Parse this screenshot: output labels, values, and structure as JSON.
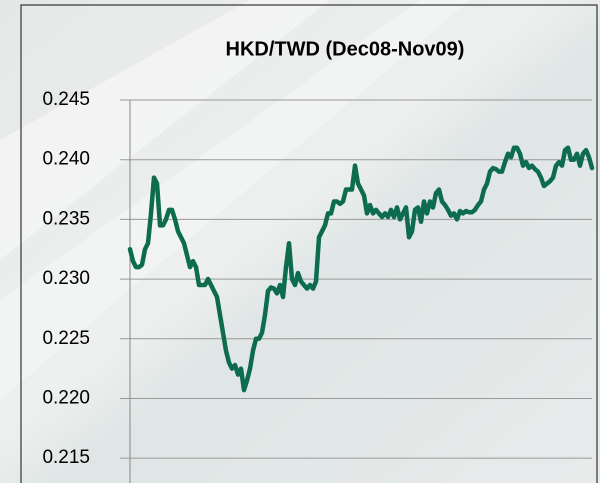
{
  "chart_data": {
    "type": "line",
    "title": "HKD/TWD (Dec08-Nov09)",
    "series": [
      {
        "name": null,
        "color": "#0d6b4e",
        "values": [
          0.2325,
          0.2315,
          0.231,
          0.231,
          0.2312,
          0.2325,
          0.233,
          0.2355,
          0.2385,
          0.238,
          0.2345,
          0.2345,
          0.235,
          0.2358,
          0.2358,
          0.235,
          0.234,
          0.2335,
          0.233,
          0.232,
          0.231,
          0.2315,
          0.231,
          0.2295,
          0.2295,
          0.2295,
          0.23,
          0.2295,
          0.229,
          0.2285,
          0.227,
          0.2255,
          0.224,
          0.223,
          0.2225,
          0.2228,
          0.222,
          0.2225,
          0.2207,
          0.2215,
          0.2225,
          0.224,
          0.225,
          0.225,
          0.2255,
          0.227,
          0.229,
          0.2293,
          0.2292,
          0.2288,
          0.2295,
          0.2285,
          0.231,
          0.233,
          0.23,
          0.2295,
          0.2305,
          0.2298,
          0.2295,
          0.2292,
          0.2295,
          0.2292,
          0.2298,
          0.2335,
          0.234,
          0.2345,
          0.2355,
          0.2355,
          0.2365,
          0.2365,
          0.2363,
          0.2365,
          0.2375,
          0.2375,
          0.2375,
          0.2395,
          0.238,
          0.2375,
          0.237,
          0.2355,
          0.2362,
          0.2355,
          0.2358,
          0.2355,
          0.2352,
          0.2355,
          0.2352,
          0.2358,
          0.2352,
          0.236,
          0.235,
          0.2355,
          0.236,
          0.2335,
          0.234,
          0.2358,
          0.236,
          0.2348,
          0.2365,
          0.2355,
          0.2365,
          0.236,
          0.2372,
          0.2375,
          0.2365,
          0.2362,
          0.2358,
          0.2353,
          0.2355,
          0.235,
          0.2357,
          0.2355,
          0.2357,
          0.2356,
          0.2356,
          0.2358,
          0.2362,
          0.2365,
          0.2375,
          0.238,
          0.239,
          0.2393,
          0.2392,
          0.239,
          0.239,
          0.2398,
          0.2405,
          0.2402,
          0.241,
          0.241,
          0.2405,
          0.2395,
          0.2398,
          0.2393,
          0.2395,
          0.2392,
          0.239,
          0.2385,
          0.2378,
          0.238,
          0.2382,
          0.2385,
          0.2395,
          0.2398,
          0.2395,
          0.2408,
          0.241,
          0.24,
          0.24,
          0.2405,
          0.2395,
          0.2405,
          0.2408,
          0.2402,
          0.2393
        ]
      }
    ],
    "ylim": [
      0.213,
      0.245
    ],
    "yticks": [
      0.215,
      {
        "value": 0.22,
        "label": "0.220"
      },
      0.225,
      {
        "value": 0.23,
        "label": "0.230"
      },
      0.235,
      {
        "value": 0.24,
        "label": "0.240"
      },
      0.245
    ],
    "grid": true
  }
}
